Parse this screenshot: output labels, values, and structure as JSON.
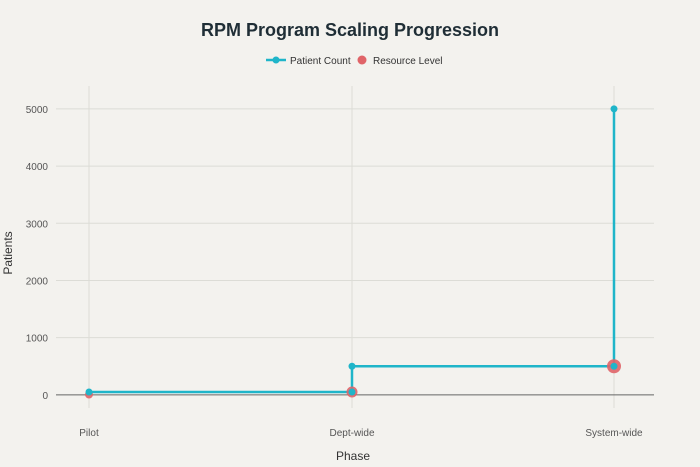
{
  "chart_data": {
    "type": "line",
    "title": "RPM Program Scaling Progression",
    "xlabel": "Phase",
    "ylabel": "Patients",
    "categories": [
      "Pilot",
      "Dept-wide",
      "System-wide"
    ],
    "ylim": [
      -230,
      5400
    ],
    "yticks": [
      0,
      1000,
      2000,
      3000,
      4000,
      5000
    ],
    "grid": true,
    "legend_position": "top-center",
    "series": [
      {
        "name": "Patient Count",
        "kind": "step-line",
        "color": "#1fb5c9",
        "points": [
          {
            "x": "Pilot",
            "y": 50
          },
          {
            "x": "Dept-wide",
            "y": 50
          },
          {
            "x": "Dept-wide",
            "y": 500
          },
          {
            "x": "System-wide",
            "y": 500
          },
          {
            "x": "System-wide",
            "y": 5000
          }
        ]
      },
      {
        "name": "Resource Level",
        "kind": "scatter",
        "color": "#e06468",
        "points": [
          {
            "x": "Pilot",
            "y": 5,
            "size": 1
          },
          {
            "x": "Dept-wide",
            "y": 50,
            "size": 2
          },
          {
            "x": "System-wide",
            "y": 500,
            "size": 3
          }
        ]
      }
    ]
  }
}
